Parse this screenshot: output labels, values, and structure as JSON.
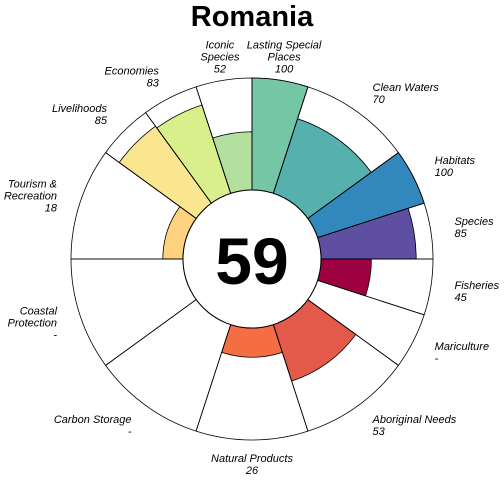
{
  "chart_data": {
    "type": "flower",
    "title": "Romania",
    "overall_score": "59",
    "value_max": 100,
    "petals": [
      {
        "name": "Fisheries",
        "value": 45,
        "weight": 0.5,
        "color": "#9e0142",
        "label": [
          "Fisheries",
          "45"
        ]
      },
      {
        "name": "Mariculture",
        "value": null,
        "weight": 0.5,
        "color": "#d53e4f",
        "label": [
          "Mariculture",
          "-"
        ]
      },
      {
        "name": "Aboriginal Needs",
        "value": 53,
        "weight": 1,
        "color": "#e45a4a",
        "label": [
          "Aboriginal Needs",
          "53"
        ]
      },
      {
        "name": "Natural Products",
        "value": 26,
        "weight": 1,
        "color": "#f46d43",
        "label": [
          "Natural Products",
          "26"
        ]
      },
      {
        "name": "Carbon Storage",
        "value": null,
        "weight": 1,
        "color": "#f98e52",
        "label": [
          "Carbon Storage",
          "-"
        ]
      },
      {
        "name": "Coastal Protection",
        "value": null,
        "weight": 1,
        "color": "#fdae61",
        "label": [
          "Coastal",
          "Protection",
          "-"
        ]
      },
      {
        "name": "Tourism & Recreation",
        "value": 18,
        "weight": 1,
        "color": "#fed27f",
        "label": [
          "Tourism &",
          "Recreation",
          "18"
        ]
      },
      {
        "name": "Livelihoods",
        "value": 85,
        "weight": 0.5,
        "color": "#fae68e",
        "label": [
          "Livelihoods",
          "85"
        ]
      },
      {
        "name": "Economies",
        "value": 83,
        "weight": 0.5,
        "color": "#d9ef8b",
        "label": [
          "Economies",
          "83"
        ]
      },
      {
        "name": "Iconic Species",
        "value": 52,
        "weight": 0.5,
        "color": "#b3e09f",
        "label": [
          "Iconic",
          "Species",
          "52"
        ]
      },
      {
        "name": "Lasting Special Places",
        "value": 100,
        "weight": 0.5,
        "color": "#74c6a5",
        "label": [
          "Lasting Special",
          "Places",
          "100"
        ]
      },
      {
        "name": "Clean Waters",
        "value": 70,
        "weight": 1,
        "color": "#56b0ad",
        "label": [
          "Clean Waters",
          "70"
        ]
      },
      {
        "name": "Habitats",
        "value": 100,
        "weight": 0.5,
        "color": "#3288bd",
        "label": [
          "Habitats",
          "100"
        ]
      },
      {
        "name": "Species",
        "value": 85,
        "weight": 0.5,
        "color": "#5e4fa2",
        "label": [
          "Species",
          "85"
        ]
      }
    ]
  }
}
